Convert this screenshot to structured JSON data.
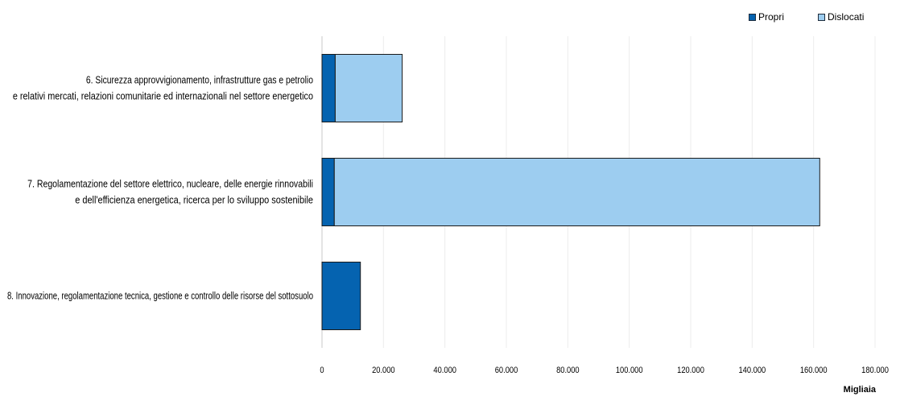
{
  "chart_data": {
    "type": "bar",
    "orientation": "horizontal",
    "stacked": true,
    "categories": [
      [
        "6. Sicurezza approvvigionamento, infrastrutture gas e petrolio",
        "e relativi mercati, relazioni comunitarie ed internazionali nel settore energetico"
      ],
      [
        "7. Regolamentazione del settore elettrico, nucleare, delle energie rinnovabili",
        "e dell'efficienza energetica, ricerca per lo sviluppo sostenibile"
      ],
      [
        "8. Innovazione, regolamentazione tecnica, gestione e controllo delle risorse del sottosuolo"
      ]
    ],
    "series": [
      {
        "name": "Propri",
        "color": "#0563b0",
        "values": [
          4300,
          4000,
          12500
        ]
      },
      {
        "name": "Dislocati",
        "color": "#9dcdf0",
        "values": [
          21800,
          158000,
          0
        ]
      }
    ],
    "xlim": [
      0,
      180000
    ],
    "x_ticks": [
      0,
      20000,
      40000,
      60000,
      80000,
      100000,
      120000,
      140000,
      160000,
      180000
    ],
    "x_tick_labels": [
      "0",
      "20.000",
      "40.000",
      "60.000",
      "80.000",
      "100.000",
      "120.000",
      "140.000",
      "160.000",
      "180.000"
    ],
    "unit_label": "Migliaia",
    "grid": true,
    "legend_position": "top-right"
  }
}
